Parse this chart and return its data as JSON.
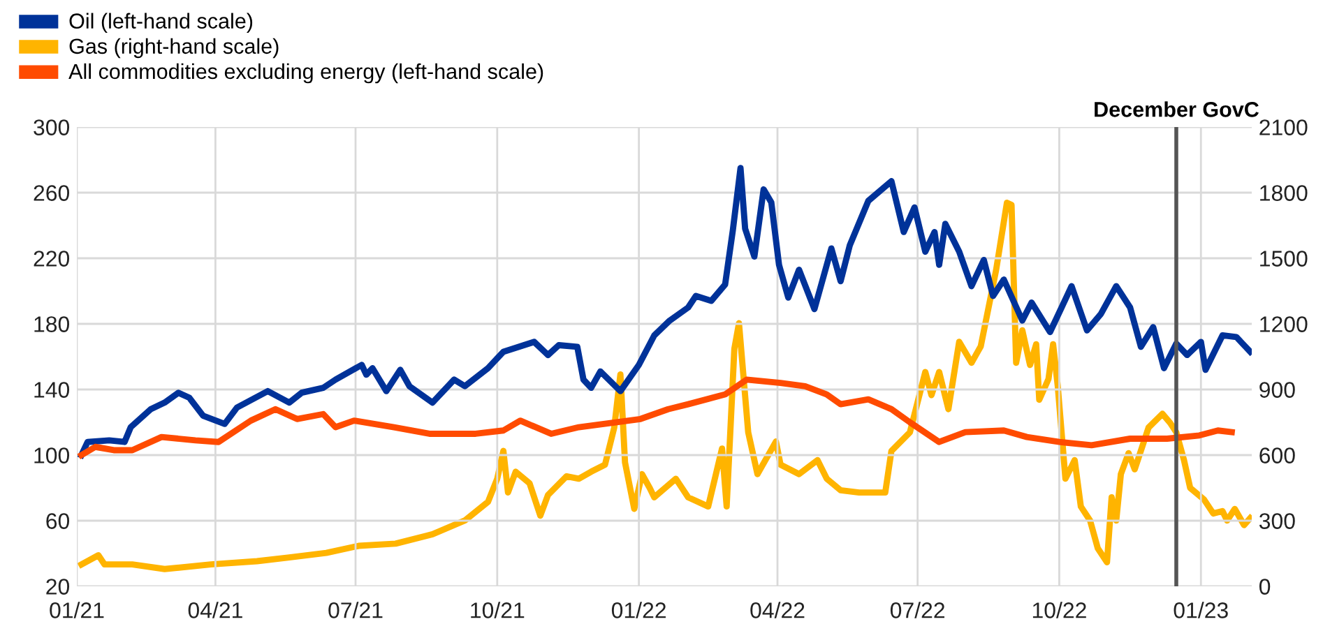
{
  "chart_data": {
    "type": "line",
    "legend": "top left",
    "grid": true,
    "line_style": "solid",
    "marker": "none",
    "xlim": [
      "2021-01-01",
      "2023-02-03"
    ],
    "xticks": [
      {
        "value": "2021-01",
        "label": "01/21"
      },
      {
        "value": "2021-04",
        "label": "04/21"
      },
      {
        "value": "2021-07",
        "label": "07/21"
      },
      {
        "value": "2021-10",
        "label": "10/21"
      },
      {
        "value": "2022-01",
        "label": "01/22"
      },
      {
        "value": "2022-04",
        "label": "04/22"
      },
      {
        "value": "2022-07",
        "label": "07/22"
      },
      {
        "value": "2022-10",
        "label": "10/22"
      },
      {
        "value": "2023-01",
        "label": "01/23"
      }
    ],
    "ylim": [
      20,
      300
    ],
    "yticks": [
      20,
      60,
      100,
      140,
      180,
      220,
      260,
      300
    ],
    "y2lim": [
      0,
      2100
    ],
    "y2ticks": [
      0,
      300,
      600,
      900,
      1200,
      1500,
      1800,
      2100
    ],
    "ref_lines": [
      {
        "axis": "x",
        "value": "2022-12-16",
        "label": "December GovC",
        "color": "#555555"
      }
    ],
    "series": [
      {
        "name": "Oil (left-hand scale)",
        "color": "#003299",
        "x": [
          "2021-01-04",
          "2021-01-08",
          "2021-01-22",
          "2021-02-01",
          "2021-02-05",
          "2021-02-18",
          "2021-02-27",
          "2021-03-08",
          "2021-03-15",
          "2021-03-24",
          "2021-04-07",
          "2021-04-15",
          "2021-05-05",
          "2021-05-19",
          "2021-05-27",
          "2021-06-10",
          "2021-06-18",
          "2021-07-05",
          "2021-07-08",
          "2021-07-12",
          "2021-07-21",
          "2021-07-30",
          "2021-08-05",
          "2021-08-20",
          "2021-09-03",
          "2021-09-10",
          "2021-09-25",
          "2021-10-05",
          "2021-10-25",
          "2021-11-03",
          "2021-11-10",
          "2021-11-22",
          "2021-11-26",
          "2021-12-01",
          "2021-12-07",
          "2021-12-20",
          "2022-01-01",
          "2022-01-11",
          "2022-01-21",
          "2022-02-02",
          "2022-02-07",
          "2022-02-17",
          "2022-02-26",
          "2022-03-03",
          "2022-03-08",
          "2022-03-11",
          "2022-03-17",
          "2022-03-23",
          "2022-03-28",
          "2022-04-02",
          "2022-04-08",
          "2022-04-15",
          "2022-04-25",
          "2022-05-06",
          "2022-05-12",
          "2022-05-18",
          "2022-05-30",
          "2022-06-14",
          "2022-06-22",
          "2022-06-29",
          "2022-07-06",
          "2022-07-12",
          "2022-07-15",
          "2022-07-19",
          "2022-07-28",
          "2022-08-05",
          "2022-08-13",
          "2022-08-19",
          "2022-08-26",
          "2022-09-07",
          "2022-09-13",
          "2022-09-25",
          "2022-10-09",
          "2022-10-19",
          "2022-10-28",
          "2022-11-07",
          "2022-11-16",
          "2022-11-23",
          "2022-12-01",
          "2022-12-08",
          "2022-12-16",
          "2022-12-23",
          "2023-01-01",
          "2023-01-04",
          "2023-01-15",
          "2023-01-24",
          "2023-02-02"
        ],
        "values": [
          100,
          108,
          109,
          108,
          117,
          128,
          132,
          138,
          135,
          124,
          119,
          129,
          139,
          132,
          138,
          141,
          146,
          155,
          149,
          153,
          139,
          152,
          142,
          132,
          146,
          142,
          153,
          163,
          169,
          161,
          167,
          166,
          146,
          141,
          151,
          139,
          155,
          173,
          182,
          190,
          197,
          194,
          204,
          237,
          275,
          238,
          221,
          262,
          254,
          216,
          196,
          213,
          189,
          226,
          206,
          228,
          255,
          267,
          236,
          251,
          224,
          236,
          216,
          241,
          224,
          203,
          219,
          197,
          207,
          182,
          193,
          175,
          203,
          176,
          186,
          203,
          190,
          166,
          178,
          153,
          168,
          161,
          169,
          152,
          173,
          172,
          163
        ]
      },
      {
        "name": "Gas (right-hand scale)",
        "color": "#ffb400",
        "axis": "y2",
        "x": [
          "2021-01-04",
          "2021-01-15",
          "2021-01-19",
          "2021-02-06",
          "2021-02-27",
          "2021-03-29",
          "2021-04-28",
          "2021-05-19",
          "2021-06-12",
          "2021-07-03",
          "2021-07-27",
          "2021-08-20",
          "2021-09-10",
          "2021-09-25",
          "2021-10-01",
          "2021-10-05",
          "2021-10-08",
          "2021-10-13",
          "2021-10-22",
          "2021-10-29",
          "2021-11-03",
          "2021-11-15",
          "2021-11-23",
          "2021-12-01",
          "2021-12-10",
          "2021-12-16",
          "2021-12-20",
          "2021-12-23",
          "2021-12-29",
          "2022-01-03",
          "2022-01-08",
          "2022-01-11",
          "2022-01-25",
          "2022-02-02",
          "2022-02-15",
          "2022-02-24",
          "2022-02-27",
          "2022-03-04",
          "2022-03-07",
          "2022-03-13",
          "2022-03-19",
          "2022-03-31",
          "2022-04-03",
          "2022-04-15",
          "2022-04-27",
          "2022-05-03",
          "2022-05-12",
          "2022-05-24",
          "2022-06-10",
          "2022-06-14",
          "2022-06-26",
          "2022-07-06",
          "2022-07-10",
          "2022-07-15",
          "2022-07-21",
          "2022-07-28",
          "2022-08-05",
          "2022-08-11",
          "2022-08-21",
          "2022-08-28",
          "2022-08-31",
          "2022-09-03",
          "2022-09-07",
          "2022-09-12",
          "2022-09-16",
          "2022-09-18",
          "2022-09-24",
          "2022-09-27",
          "2022-09-30",
          "2022-10-05",
          "2022-10-11",
          "2022-10-15",
          "2022-10-21",
          "2022-10-26",
          "2022-11-01",
          "2022-11-04",
          "2022-11-07",
          "2022-11-10",
          "2022-11-15",
          "2022-11-19",
          "2022-11-28",
          "2022-12-07",
          "2022-12-12",
          "2022-12-16",
          "2022-12-21",
          "2022-12-25",
          "2023-01-03",
          "2023-01-09",
          "2023-01-15",
          "2023-01-18",
          "2023-01-23",
          "2023-01-29",
          "2023-02-02"
        ],
        "values": [
          100,
          142,
          100,
          100,
          79,
          100,
          115,
          132,
          153,
          185,
          195,
          238,
          301,
          386,
          492,
          619,
          429,
          524,
          471,
          323,
          418,
          503,
          492,
          524,
          556,
          726,
          969,
          566,
          354,
          513,
          450,
          407,
          492,
          407,
          365,
          630,
          365,
          1086,
          1203,
          704,
          513,
          662,
          556,
          513,
          577,
          492,
          439,
          429,
          429,
          619,
          704,
          980,
          874,
          980,
          810,
          1118,
          1022,
          1097,
          1447,
          1754,
          1744,
          1022,
          1171,
          1012,
          1107,
          853,
          948,
          1107,
          917,
          492,
          577,
          365,
          301,
          174,
          110,
          407,
          301,
          513,
          609,
          535,
          726,
          789,
          747,
          704,
          577,
          450,
          397,
          333,
          344,
          301,
          354,
          280,
          312
        ]
      },
      {
        "name": "All commodities excluding energy (left-hand scale)",
        "color": "#ff4b00",
        "x": [
          "2021-01-04",
          "2021-01-13",
          "2021-01-25",
          "2021-02-06",
          "2021-02-25",
          "2021-03-19",
          "2021-04-03",
          "2021-04-24",
          "2021-05-10",
          "2021-05-24",
          "2021-06-10",
          "2021-06-18",
          "2021-06-30",
          "2021-07-26",
          "2021-08-18",
          "2021-09-17",
          "2021-10-05",
          "2021-10-16",
          "2021-11-05",
          "2021-11-23",
          "2022-01-02",
          "2022-01-20",
          "2022-02-02",
          "2022-02-26",
          "2022-03-12",
          "2022-04-03",
          "2022-04-19",
          "2022-05-03",
          "2022-05-12",
          "2022-05-30",
          "2022-06-14",
          "2022-06-26",
          "2022-07-15",
          "2022-08-01",
          "2022-08-26",
          "2022-09-10",
          "2022-10-01",
          "2022-10-22",
          "2022-11-16",
          "2022-12-10",
          "2022-12-31",
          "2023-01-12",
          "2023-01-21"
        ],
        "values": [
          100,
          105,
          103,
          103,
          111,
          109,
          108,
          121,
          128,
          122,
          125,
          117,
          121,
          117,
          113,
          113,
          115,
          121,
          113,
          117,
          122,
          128,
          131,
          137,
          146,
          144,
          142,
          137,
          131,
          134,
          128,
          120,
          108,
          114,
          115,
          111,
          108,
          106,
          110,
          110,
          112,
          115,
          114
        ]
      }
    ]
  }
}
